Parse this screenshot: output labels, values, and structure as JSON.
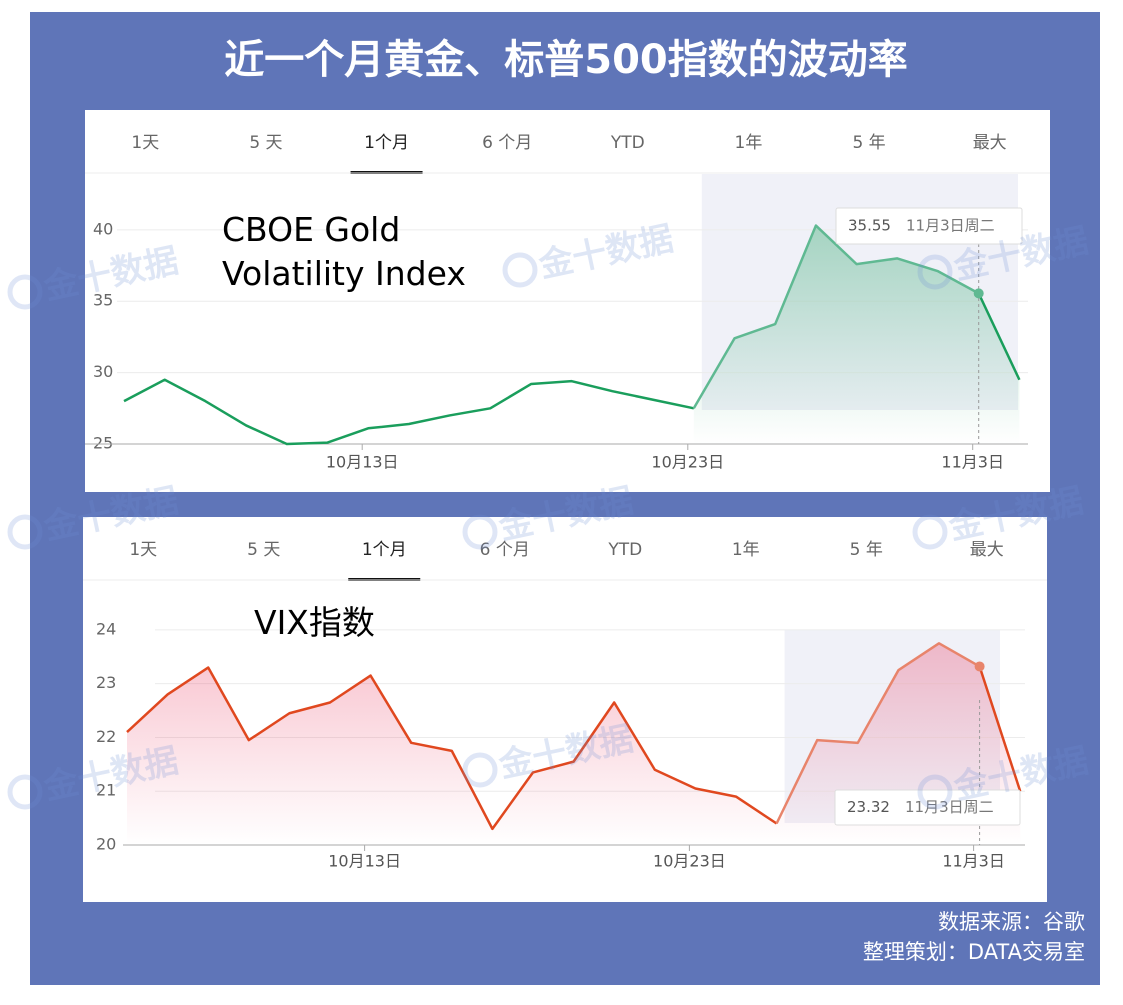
{
  "title": "近一个月黄金、标普500指数的波动率",
  "watermark": "金十数据",
  "source": [
    "数据来源：谷歌",
    "整理策划：DATA交易室"
  ],
  "chart_data": [
    {
      "type": "line",
      "title": "CBOE Gold Volatility Index",
      "tabs": [
        "1天",
        "5 天",
        "1个月",
        "6 个月",
        "YTD",
        "1年",
        "5 年",
        "最大"
      ],
      "selected_tab": 2,
      "categories": [
        null,
        null,
        null,
        null,
        null,
        null,
        "10月13日",
        null,
        null,
        null,
        null,
        null,
        null,
        null,
        "10月23日",
        null,
        null,
        null,
        null,
        null,
        null,
        "11月3日",
        null
      ],
      "series": [
        {
          "name": "CBOE Gold Volatility Index",
          "color": "#1a9e5c",
          "highlight_color": "#5fb992",
          "values": [
            28.0,
            29.5,
            28.0,
            26.3,
            25.0,
            25.1,
            26.1,
            26.4,
            27.0,
            27.5,
            29.2,
            29.4,
            28.7,
            28.1,
            27.5,
            32.4,
            33.4,
            40.3,
            37.6,
            38.0,
            37.1,
            35.55,
            29.5
          ]
        }
      ],
      "ylim": [
        25,
        43
      ],
      "yticks": [
        25,
        30,
        35,
        40
      ],
      "grid": true,
      "highlight_start": 14,
      "tooltip_index": 21,
      "tooltip_label": "11月3日周二"
    },
    {
      "type": "line",
      "title": "VIX指数",
      "tabs": [
        "1天",
        "5 天",
        "1个月",
        "6 个月",
        "YTD",
        "1年",
        "5 年",
        "最大"
      ],
      "selected_tab": 2,
      "categories": [
        null,
        null,
        null,
        null,
        null,
        null,
        "10月13日",
        null,
        null,
        null,
        null,
        null,
        null,
        null,
        "10月23日",
        null,
        null,
        null,
        null,
        null,
        null,
        "11月3日",
        null
      ],
      "series": [
        {
          "name": "VIX指数",
          "color": "#e0481f",
          "highlight_color": "#e8846b",
          "values": [
            22.1,
            22.8,
            23.3,
            21.95,
            22.45,
            22.65,
            23.15,
            21.9,
            21.75,
            20.3,
            21.35,
            21.55,
            22.65,
            21.4,
            21.05,
            20.9,
            20.4,
            21.95,
            21.9,
            23.25,
            23.75,
            23.32,
            21.0
          ]
        }
      ],
      "ylim": [
        20,
        24.5
      ],
      "yticks": [
        20,
        21,
        22,
        23,
        24
      ],
      "grid": true,
      "highlight_start": 16,
      "tooltip_index": 21,
      "tooltip_label": "11月3日周二"
    }
  ]
}
